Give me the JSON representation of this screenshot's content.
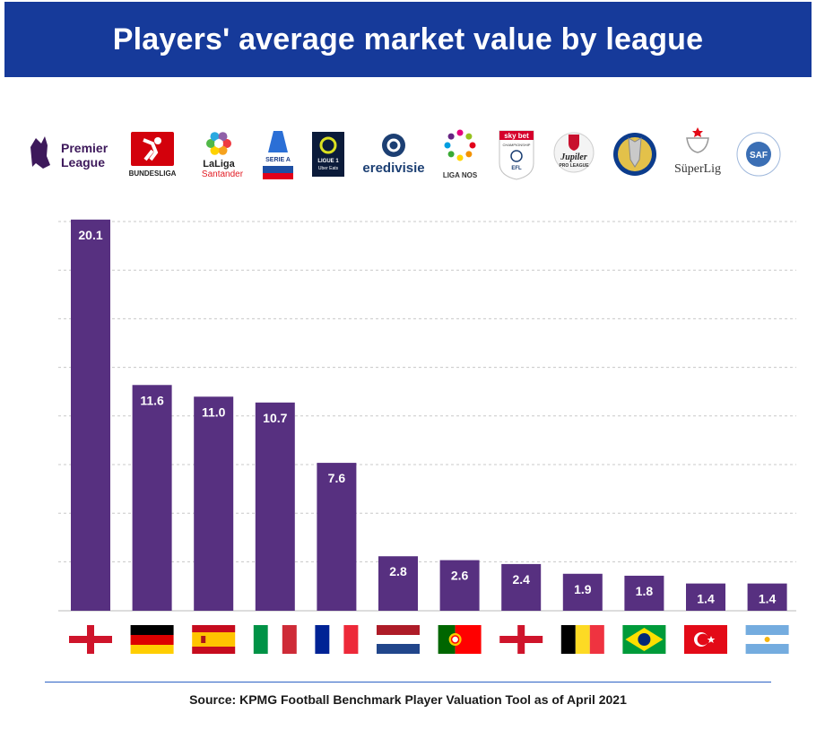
{
  "title": "Players' average market value by league",
  "source": "Source: KPMG Football Benchmark Player Valuation Tool as of April 2021",
  "colors": {
    "banner": "#163a9a",
    "bar": "#573080",
    "grid": "#c8c8c8",
    "label": "#ffffff"
  },
  "chart_data": {
    "type": "bar",
    "categories": [
      "Premier League",
      "Bundesliga",
      "LaLiga Santander",
      "Serie A",
      "Ligue 1 Uber Eats",
      "Eredivisie",
      "Liga NOS",
      "Sky Bet Championship",
      "Jupiler Pro League",
      "Brasileirão",
      "Süper Lig",
      "SAF"
    ],
    "values": [
      20.1,
      11.6,
      11.0,
      10.7,
      7.6,
      2.8,
      2.6,
      2.4,
      1.9,
      1.8,
      1.4,
      1.4
    ],
    "value_labels": [
      "20.1",
      "11.6",
      "11.0",
      "10.7",
      "7.6",
      "2.8",
      "2.6",
      "2.4",
      "1.9",
      "1.8",
      "1.4",
      "1.4"
    ],
    "flags": [
      "england",
      "germany",
      "spain",
      "italy",
      "france",
      "netherlands",
      "portugal",
      "england",
      "belgium",
      "brazil",
      "turkey",
      "argentina"
    ],
    "logo_texts": {
      "premier_league": [
        "Premier",
        "League"
      ],
      "bundesliga": "BUNDESLIGA",
      "laliga": [
        "LaLiga",
        "Santander"
      ],
      "serie_a": "SERIE A",
      "ligue1": [
        "LIGUE 1",
        "Uber Eats"
      ],
      "eredivisie": "eredivisie",
      "liga_nos": "LIGA NOS",
      "championship": [
        "sky bet",
        "CHAMPIONSHIP",
        "EFL"
      ],
      "jupiler": [
        "Jupiler",
        "PRO LEAGUE"
      ],
      "superlig": "SüperLig",
      "saf": "SAF"
    },
    "ylim": [
      0,
      20
    ],
    "grid": true,
    "xlabel": "",
    "ylabel": ""
  }
}
